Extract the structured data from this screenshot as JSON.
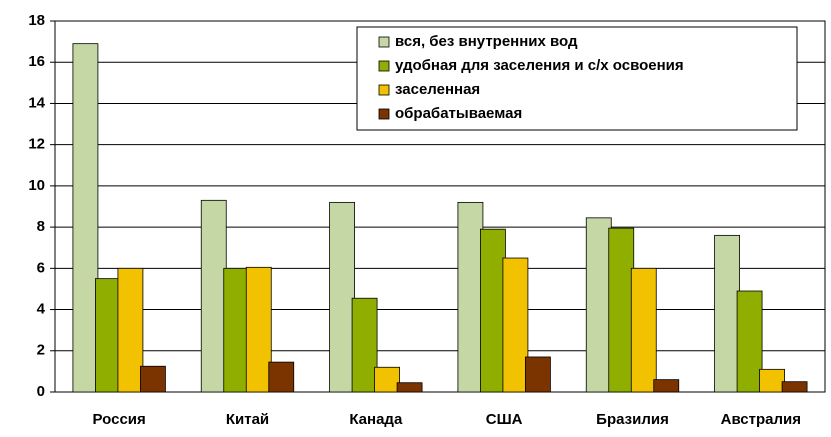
{
  "chart_data": {
    "type": "bar",
    "categories": [
      "Россия",
      "Китай",
      "Канада",
      "США",
      "Бразилия",
      "Австралия"
    ],
    "series": [
      {
        "name": "вся, без внутренних вод",
        "color": "#c4d7a4",
        "values": [
          16.9,
          9.3,
          9.2,
          9.2,
          8.45,
          7.6
        ]
      },
      {
        "name": "удобная для заселения и с/х освоения",
        "color": "#8fae00",
        "values": [
          5.5,
          6.0,
          4.55,
          7.9,
          7.95,
          4.9
        ]
      },
      {
        "name": "заселенная",
        "color": "#f2c200",
        "values": [
          6.0,
          6.05,
          1.2,
          6.5,
          6.0,
          1.1
        ]
      },
      {
        "name": "обрабатываемая",
        "color": "#7b3300",
        "values": [
          1.25,
          1.45,
          0.45,
          1.7,
          0.6,
          0.5
        ]
      }
    ],
    "ylim": [
      0,
      18
    ],
    "yticks": [
      0,
      2,
      4,
      6,
      8,
      10,
      12,
      14,
      16,
      18
    ],
    "grid": true,
    "legend": "top-right"
  }
}
